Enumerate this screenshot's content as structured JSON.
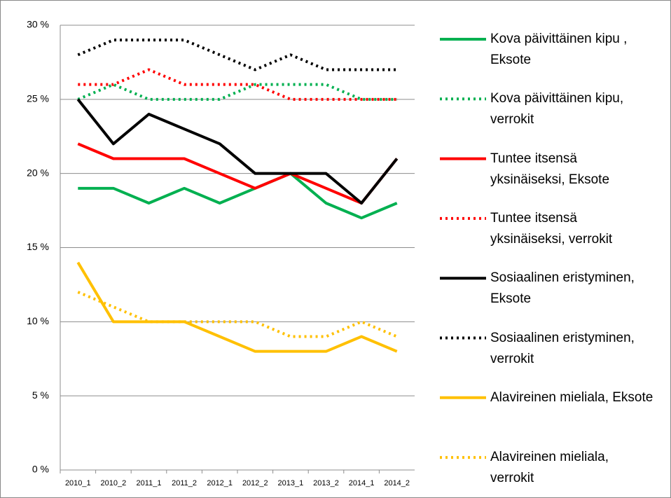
{
  "chart_data": {
    "type": "line",
    "categories": [
      "2010_1",
      "2010_2",
      "2011_1",
      "2011_2",
      "2012_1",
      "2012_2",
      "2013_1",
      "2013_2",
      "2014_1",
      "2014_2"
    ],
    "series": [
      {
        "name": "Kova päivittäinen kipu , Eksote",
        "color": "#00b050",
        "style": "solid",
        "values": [
          19,
          19,
          18,
          19,
          18,
          19,
          20,
          18,
          17,
          18
        ]
      },
      {
        "name": "Kova päivittäinen kipu, verrokit",
        "color": "#00b050",
        "style": "dotted",
        "values": [
          25,
          26,
          25,
          25,
          25,
          26,
          26,
          26,
          25,
          25
        ]
      },
      {
        "name": "Tuntee itsensä yksinäiseksi, Eksote",
        "color": "#ff0000",
        "style": "solid",
        "values": [
          22,
          21,
          21,
          21,
          20,
          19,
          20,
          19,
          18,
          21
        ]
      },
      {
        "name": "Tuntee itsensä yksinäiseksi, verrokit",
        "color": "#ff0000",
        "style": "dotted",
        "values": [
          26,
          26,
          27,
          26,
          26,
          26,
          25,
          25,
          25,
          25
        ]
      },
      {
        "name": "Sosiaalinen eristyminen, Eksote",
        "color": "#000000",
        "style": "solid",
        "values": [
          25,
          22,
          24,
          23,
          22,
          20,
          20,
          20,
          18,
          21
        ]
      },
      {
        "name": "Sosiaalinen eristyminen, verrokit",
        "color": "#000000",
        "style": "dotted",
        "values": [
          28,
          29,
          29,
          29,
          28,
          27,
          28,
          27,
          27,
          27
        ]
      },
      {
        "name": "Alavireinen mieliala, Eksote",
        "color": "#ffc000",
        "style": "solid",
        "values": [
          14,
          10,
          10,
          10,
          9,
          8,
          8,
          8,
          9,
          8
        ]
      },
      {
        "name": "Alavireinen mieliala, verrokit",
        "color": "#ffc000",
        "style": "dotted",
        "values": [
          12,
          11,
          10,
          10,
          10,
          10,
          9,
          9,
          10,
          9
        ]
      }
    ],
    "ylim": [
      0,
      30
    ],
    "yticks": [
      {
        "value": 0,
        "label": "0 %"
      },
      {
        "value": 5,
        "label": "5 %"
      },
      {
        "value": 10,
        "label": "10 %"
      },
      {
        "value": 15,
        "label": "15 %"
      },
      {
        "value": 20,
        "label": "20 %"
      },
      {
        "value": 25,
        "label": "25 %"
      },
      {
        "value": 30,
        "label": "30 %"
      }
    ],
    "grid": true,
    "legend": "right"
  }
}
